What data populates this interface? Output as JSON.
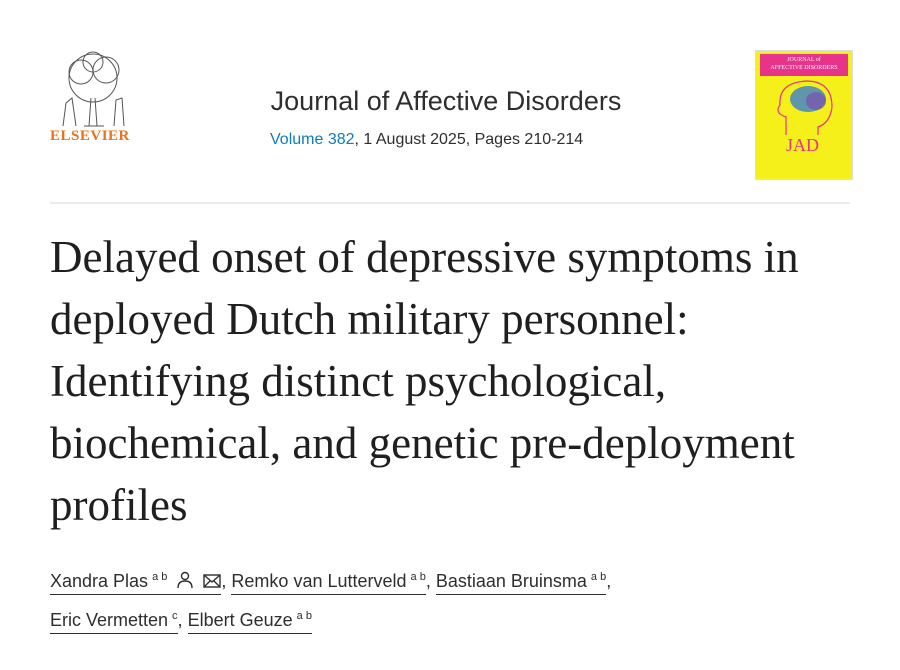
{
  "publisher": {
    "name": "ELSEVIER"
  },
  "journal": {
    "title": "Journal of Affective Disorders",
    "volume_link": "Volume 382",
    "issue_info": ", 1 August 2025, Pages 210-214",
    "cover_title_top": "JOURNAL of",
    "cover_title_main": "AFFECTIVE DISORDERS",
    "cover_abbrev": "JAD"
  },
  "article": {
    "title": "Delayed onset of depressive symptoms in deployed Dutch military personnel: Identifying distinct psychological, biochemical, and genetic pre-deployment profiles"
  },
  "authors": [
    {
      "name": "Xandra Plas",
      "affil": "a b",
      "icons": [
        "person-icon",
        "envelope-icon"
      ]
    },
    {
      "name": "Remko van Lutterveld",
      "affil": "a b"
    },
    {
      "name": "Bastiaan Bruinsma",
      "affil": "a b"
    },
    {
      "name": "Eric Vermetten",
      "affil": "c"
    },
    {
      "name": "Elbert Geuze",
      "affil": "a b"
    }
  ],
  "separator": ","
}
